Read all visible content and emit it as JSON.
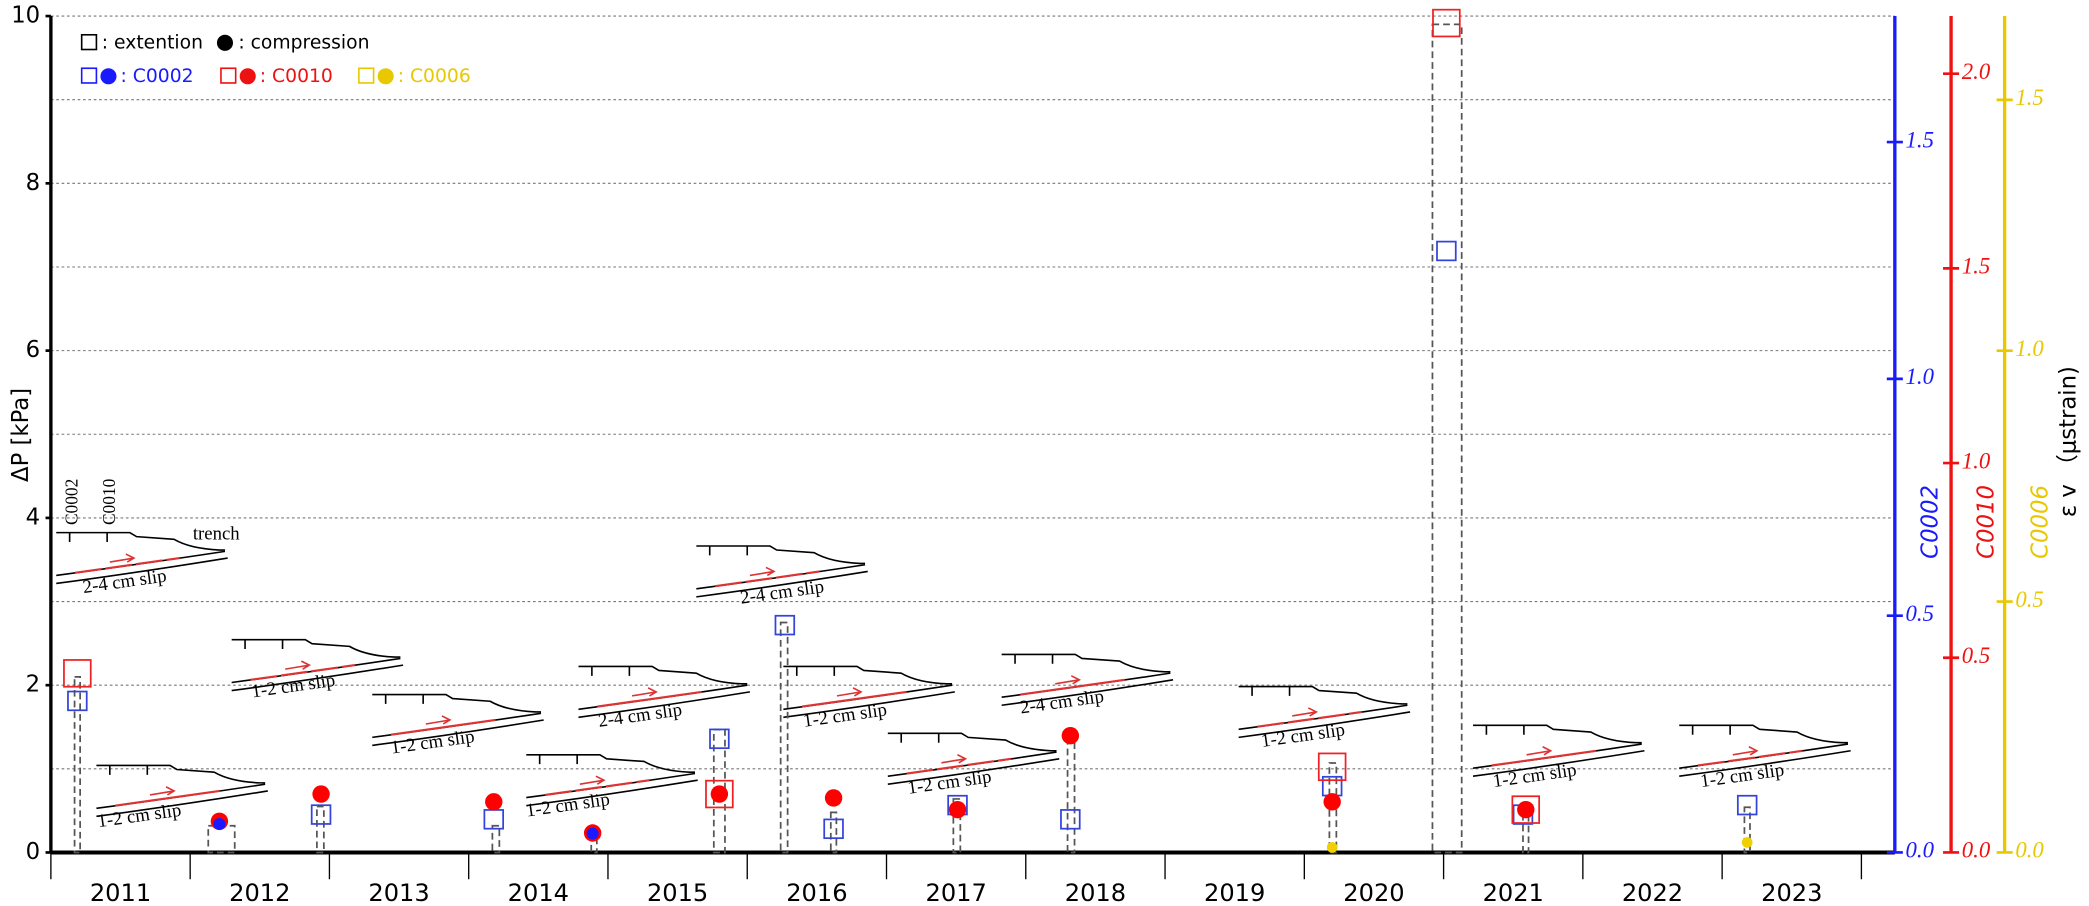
{
  "chart_data": {
    "type": "scatter",
    "ylabel": "ΔP [kPa]",
    "ylim": [
      0,
      10
    ],
    "yticks": [
      0,
      2,
      4,
      6,
      8,
      10
    ],
    "minor_yticks": [
      1,
      3,
      5,
      7,
      9
    ],
    "grid": true,
    "xlim": [
      2011,
      2024.24
    ],
    "xticks": [
      2011,
      2012,
      2013,
      2014,
      2015,
      2016,
      2017,
      2018,
      2019,
      2020,
      2021,
      2022,
      2023,
      2024
    ],
    "xlabels": [
      {
        "value": 2011.5,
        "label": "2011"
      },
      {
        "value": 2012.5,
        "label": "2012"
      },
      {
        "value": 2013.5,
        "label": "2013"
      },
      {
        "value": 2014.5,
        "label": "2014"
      },
      {
        "value": 2015.5,
        "label": "2015"
      },
      {
        "value": 2016.5,
        "label": "2016"
      },
      {
        "value": 2017.5,
        "label": "2017"
      },
      {
        "value": 2018.5,
        "label": "2018"
      },
      {
        "value": 2019.5,
        "label": "2019"
      },
      {
        "value": 2020.5,
        "label": "2020"
      },
      {
        "value": 2021.5,
        "label": "2021"
      },
      {
        "value": 2022.5,
        "label": "2022"
      },
      {
        "value": 2023.5,
        "label": "2023"
      }
    ],
    "pressure": {
      "color": "#555555",
      "x_start": [
        2011.17,
        2012.13,
        2012.91,
        2014.17,
        2014.88,
        2015.76,
        2016.24,
        2016.6,
        2017.48,
        2018.3,
        2020.18,
        2020.92,
        2021.57,
        2023.16
      ],
      "x_end": [
        2011.21,
        2012.32,
        2012.96,
        2014.22,
        2014.92,
        2015.84,
        2016.29,
        2016.64,
        2017.53,
        2018.35,
        2020.23,
        2021.13,
        2021.61,
        2023.2
      ],
      "values": [
        2.1,
        0.32,
        0.55,
        0.32,
        0.24,
        1.47,
        2.75,
        0.48,
        0.64,
        1.36,
        1.07,
        9.9,
        0.51,
        0.54
      ]
    },
    "right_axes": [
      {
        "name": "C0002",
        "color": "#1a1aff",
        "lim": [
          0,
          1.766
        ],
        "ticks": [
          {
            "value": 0,
            "label": "0.0"
          },
          0.5,
          {
            "value": 1,
            "label": "1.0"
          },
          1.5
        ]
      },
      {
        "name": "C0010",
        "color": "#ee1111",
        "lim": [
          0,
          2.148
        ],
        "ticks": [
          {
            "value": 0,
            "label": "0.0"
          },
          0.5,
          {
            "value": 1,
            "label": "1.0"
          },
          1.5,
          {
            "value": 2,
            "label": "2.0"
          }
        ]
      },
      {
        "name": "C0006",
        "color": "#e8c800",
        "lim": [
          0,
          1.667
        ],
        "ticks": [
          {
            "value": 0,
            "label": "0.0"
          },
          0.5,
          {
            "value": 1,
            "label": "1.0"
          },
          1.5
        ]
      }
    ],
    "right_label": "ε v （μstrain)",
    "series": [
      {
        "axis": 0,
        "marker": "square",
        "color": "#3344dd",
        "x": [
          2011.19,
          2012.94,
          2014.18,
          2015.8,
          2016.27,
          2016.62,
          2017.51,
          2018.32,
          2020.2,
          2021.02,
          2021.57,
          2023.18
        ],
        "values": [
          0.32,
          0.08,
          0.07,
          0.24,
          0.48,
          0.05,
          0.1,
          0.07,
          0.14,
          1.27,
          0.08,
          0.1
        ]
      },
      {
        "axis": 1,
        "marker": "square",
        "color": "#ee2222",
        "x": [
          2011.19,
          2015.8,
          2020.2,
          2021.02,
          2021.59
        ],
        "values": [
          0.46,
          0.15,
          0.22,
          2.13,
          0.11
        ]
      },
      {
        "axis": 1,
        "marker": "circle",
        "color": "#ff0000",
        "x": [
          2012.21,
          2012.94,
          2014.18,
          2014.89,
          2015.8,
          2016.62,
          2017.51,
          2018.32,
          2020.2,
          2021.59
        ],
        "values": [
          0.08,
          0.15,
          0.13,
          0.05,
          0.15,
          0.14,
          0.11,
          0.3,
          0.13,
          0.11
        ]
      },
      {
        "axis": 0,
        "marker": "circle",
        "color": "#1a1aff",
        "x": [
          2012.21,
          2014.89
        ],
        "values": [
          0.06,
          0.04
        ]
      },
      {
        "axis": 2,
        "marker": "circle",
        "color": "#f0d000",
        "x": [
          2020.2,
          2023.18
        ],
        "values": [
          0.01,
          0.02
        ]
      }
    ],
    "legend": {
      "extension": ": extention",
      "compression": ": compression",
      "stations": [
        ": C0002",
        ": C0010",
        ": C0006"
      ]
    },
    "annotations": {
      "slips": [
        "2-4 cm slip",
        "1-2 cm slip",
        "1-2 cm slip",
        "1-2 cm slip",
        "1-2 cm slip",
        "2-4 cm slip",
        "2-4 cm slip",
        "1-2 cm slip",
        "1-2 cm slip",
        "2-4 cm slip",
        "1-2 cm slip",
        "1-2 cm slip",
        "1-2 cm slip"
      ],
      "trench": "trench",
      "sites": [
        "C0002",
        "C0010"
      ]
    }
  }
}
